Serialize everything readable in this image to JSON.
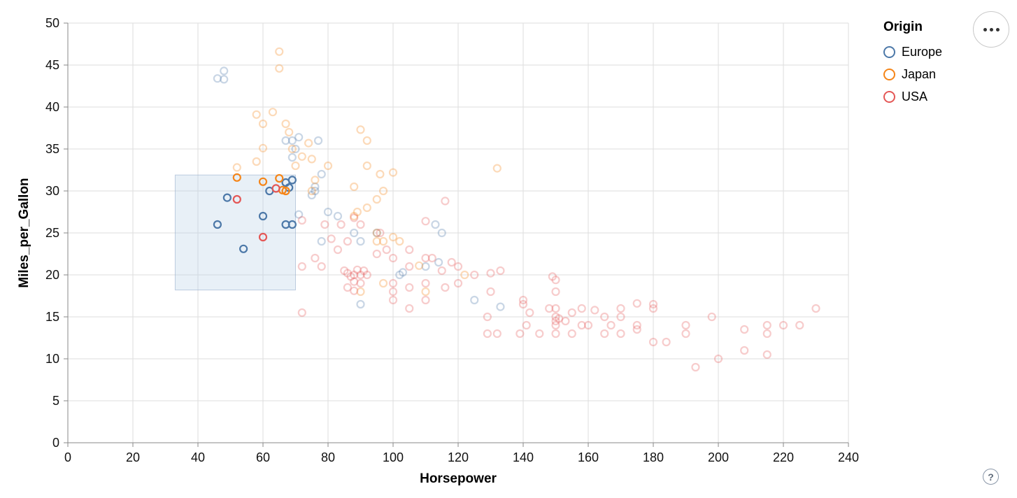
{
  "chart_data": {
    "type": "scatter",
    "xlabel": "Horsepower",
    "ylabel": "Miles_per_Gallon",
    "xlim": [
      0,
      240
    ],
    "ylim": [
      0,
      50
    ],
    "xticks": [
      0,
      20,
      40,
      60,
      80,
      100,
      120,
      140,
      160,
      180,
      200,
      220,
      240
    ],
    "yticks": [
      0,
      5,
      10,
      15,
      20,
      25,
      30,
      35,
      40,
      45,
      50
    ],
    "grid": true,
    "point_style": {
      "shape": "open-circle",
      "radius": 5,
      "stroke_width": 2.2,
      "unselected_opacity": 0.3
    },
    "brush_selection": {
      "x": [
        33,
        70
      ],
      "y": [
        18.2,
        31.9
      ],
      "fill": "#b9cfe7",
      "stroke": "#8fa8c8"
    },
    "legend": {
      "title": "Origin",
      "position": "top-right",
      "entries": [
        {
          "label": "Europe",
          "color": "#4c78a8"
        },
        {
          "label": "Japan",
          "color": "#f58518"
        },
        {
          "label": "USA",
          "color": "#e45756"
        }
      ]
    },
    "series": [
      {
        "name": "Europe",
        "color": "#4c78a8",
        "points": [
          [
            46,
            26
          ],
          [
            49,
            29.2
          ],
          [
            54,
            23.1
          ],
          [
            60,
            27
          ],
          [
            62,
            30
          ],
          [
            67,
            26
          ],
          [
            69,
            26
          ],
          [
            67,
            31
          ],
          [
            69,
            31.3
          ],
          [
            68,
            30.4
          ],
          [
            46,
            43.4
          ],
          [
            48,
            44.3
          ],
          [
            48,
            43.3
          ],
          [
            69,
            36
          ],
          [
            71,
            36.4
          ],
          [
            70,
            35
          ],
          [
            69,
            34
          ],
          [
            76,
            30.5
          ],
          [
            78,
            32
          ],
          [
            71,
            27.2
          ],
          [
            75,
            29.5
          ],
          [
            76,
            30
          ],
          [
            83,
            27
          ],
          [
            80,
            27.5
          ],
          [
            88,
            25
          ],
          [
            90,
            24
          ],
          [
            95,
            25
          ],
          [
            113,
            26
          ],
          [
            115,
            25
          ],
          [
            103,
            20.3
          ],
          [
            102,
            20
          ],
          [
            110,
            21
          ],
          [
            114,
            21.5
          ],
          [
            125,
            17
          ],
          [
            133,
            16.2
          ],
          [
            90,
            16.5
          ],
          [
            77,
            36
          ],
          [
            78,
            24
          ],
          [
            67,
            36
          ]
        ]
      },
      {
        "name": "Japan",
        "color": "#f58518",
        "points": [
          [
            52,
            31.6
          ],
          [
            60,
            31.1
          ],
          [
            65,
            31.5
          ],
          [
            66,
            30.1
          ],
          [
            67,
            30
          ],
          [
            65,
            46.6
          ],
          [
            65,
            44.6
          ],
          [
            63,
            39.4
          ],
          [
            67,
            38
          ],
          [
            68,
            37
          ],
          [
            58,
            39.1
          ],
          [
            60,
            38
          ],
          [
            60,
            35.1
          ],
          [
            58,
            33.5
          ],
          [
            52,
            32.8
          ],
          [
            69,
            35
          ],
          [
            72,
            34.1
          ],
          [
            74,
            35.7
          ],
          [
            75,
            33.8
          ],
          [
            70,
            33
          ],
          [
            75,
            30
          ],
          [
            76,
            31.3
          ],
          [
            80,
            33
          ],
          [
            88,
            30.5
          ],
          [
            90,
            37.3
          ],
          [
            92,
            36
          ],
          [
            96,
            32
          ],
          [
            100,
            32.2
          ],
          [
            92,
            33
          ],
          [
            97,
            30
          ],
          [
            95,
            29
          ],
          [
            88,
            27
          ],
          [
            89,
            27.5
          ],
          [
            92,
            28
          ],
          [
            95,
            24
          ],
          [
            95,
            25
          ],
          [
            97,
            24
          ],
          [
            97,
            19
          ],
          [
            90,
            18
          ],
          [
            102,
            24
          ],
          [
            100,
            24.5
          ],
          [
            108,
            21.1
          ],
          [
            110,
            18
          ],
          [
            122,
            20
          ],
          [
            132,
            32.7
          ]
        ]
      },
      {
        "name": "USA",
        "color": "#e45756",
        "points": [
          [
            52,
            29
          ],
          [
            60,
            24.5
          ],
          [
            64,
            30.3
          ],
          [
            72,
            15.5
          ],
          [
            72,
            26.5
          ],
          [
            72,
            21
          ],
          [
            76,
            22
          ],
          [
            78,
            21
          ],
          [
            79,
            26
          ],
          [
            81,
            24.3
          ],
          [
            83,
            23
          ],
          [
            84,
            26
          ],
          [
            86,
            24
          ],
          [
            88,
            26.8
          ],
          [
            90,
            26
          ],
          [
            85,
            20.5
          ],
          [
            86,
            20.2
          ],
          [
            87,
            19.8
          ],
          [
            88,
            20
          ],
          [
            88,
            19.2
          ],
          [
            89,
            20.6
          ],
          [
            90,
            20
          ],
          [
            90,
            19
          ],
          [
            91,
            20.5
          ],
          [
            86,
            18.5
          ],
          [
            92,
            20
          ],
          [
            88,
            18.1
          ],
          [
            95,
            22.5
          ],
          [
            96,
            25
          ],
          [
            98,
            23
          ],
          [
            100,
            22
          ],
          [
            100,
            18
          ],
          [
            100,
            17
          ],
          [
            100,
            19
          ],
          [
            105,
            23
          ],
          [
            105,
            21
          ],
          [
            105,
            16
          ],
          [
            105,
            18.5
          ],
          [
            110,
            22
          ],
          [
            112,
            22
          ],
          [
            110,
            19
          ],
          [
            110,
            17
          ],
          [
            115,
            20.5
          ],
          [
            116,
            18.5
          ],
          [
            118,
            21.5
          ],
          [
            120,
            21
          ],
          [
            110,
            26.4
          ],
          [
            116,
            28.8
          ],
          [
            129,
            15
          ],
          [
            130,
            20.2
          ],
          [
            125,
            20
          ],
          [
            133,
            20.5
          ],
          [
            120,
            19
          ],
          [
            129,
            13
          ],
          [
            132,
            13
          ],
          [
            130,
            18
          ],
          [
            139,
            13
          ],
          [
            140,
            17
          ],
          [
            140,
            16.5
          ],
          [
            141,
            14
          ],
          [
            142,
            15.5
          ],
          [
            145,
            13
          ],
          [
            148,
            16
          ],
          [
            149,
            19.8
          ],
          [
            150,
            19.4
          ],
          [
            150,
            18
          ],
          [
            150,
            16
          ],
          [
            150,
            15
          ],
          [
            150,
            14.5
          ],
          [
            150,
            14
          ],
          [
            150,
            13
          ],
          [
            151,
            14.8
          ],
          [
            153,
            14.5
          ],
          [
            155,
            15.5
          ],
          [
            155,
            13
          ],
          [
            158,
            16
          ],
          [
            158,
            14
          ],
          [
            160,
            14
          ],
          [
            162,
            15.8
          ],
          [
            165,
            15
          ],
          [
            165,
            13
          ],
          [
            167,
            14
          ],
          [
            170,
            16
          ],
          [
            170,
            15
          ],
          [
            170,
            13
          ],
          [
            175,
            16.6
          ],
          [
            175,
            14
          ],
          [
            175,
            13.5
          ],
          [
            180,
            16.5
          ],
          [
            180,
            16
          ],
          [
            180,
            12
          ],
          [
            184,
            12
          ],
          [
            190,
            14
          ],
          [
            190,
            13
          ],
          [
            193,
            9
          ],
          [
            198,
            15
          ],
          [
            200,
            10
          ],
          [
            208,
            11
          ],
          [
            208,
            13.5
          ],
          [
            215,
            10.5
          ],
          [
            215,
            13
          ],
          [
            215,
            14
          ],
          [
            220,
            14
          ],
          [
            225,
            14
          ],
          [
            230,
            16
          ]
        ]
      }
    ]
  },
  "ui": {
    "menu_button": "ellipsis-icon",
    "help_label": "?"
  }
}
